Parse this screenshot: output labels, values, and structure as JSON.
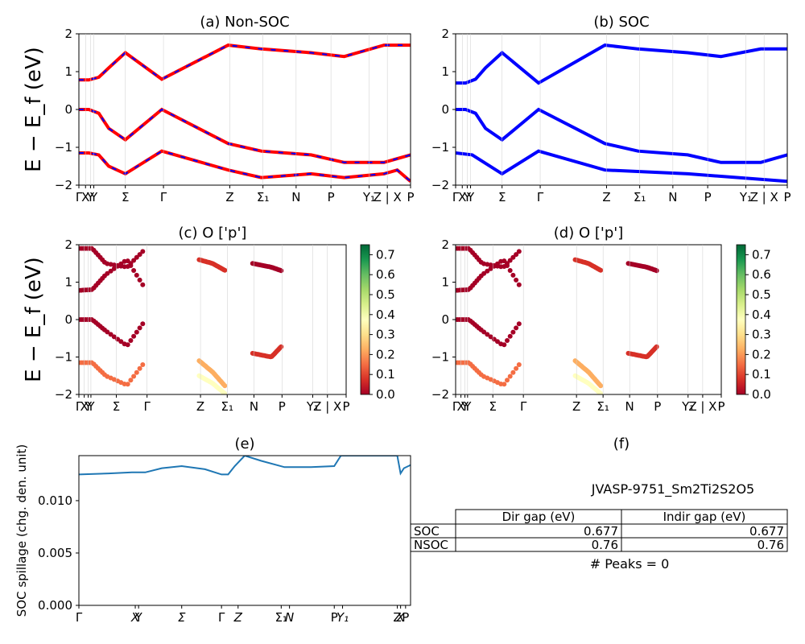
{
  "panels": {
    "a": {
      "title": "(a) Non-SOC",
      "ylabel": "E − E_f (eV)"
    },
    "b": {
      "title": "(b) SOC"
    },
    "c": {
      "title": "(c)  O ['p']",
      "ylabel": "E − E_f (eV)"
    },
    "d": {
      "title": "(d) O ['p']"
    },
    "e": {
      "title": "(e)",
      "ylabel": "SOC spillage (chg. den. unit)"
    },
    "f": {
      "title": "(f)"
    }
  },
  "band_axis": {
    "yticks": [
      "2",
      "1",
      "0",
      "−1",
      "−2"
    ],
    "ylim": [
      -2,
      2
    ]
  },
  "kpoint_labels": {
    "a": [
      "Γ",
      "X",
      "Y",
      "Y",
      "Σ",
      "Γ",
      "Z",
      "Σ₁",
      "N",
      "P",
      "Y₁",
      "Z | X",
      "P"
    ],
    "b": [
      "Γ",
      "X",
      "Y",
      "Y",
      "Σ",
      "Γ",
      "Z",
      "Σ₁",
      "N",
      "P",
      "Y₁",
      "Z | X",
      "P"
    ],
    "c": [
      "Γ",
      "X",
      "Y",
      "Y",
      "Σ",
      "Γ",
      "Z",
      "Σ₁",
      "N",
      "P",
      "Y₁",
      "Z | X",
      "P"
    ],
    "d": [
      "Γ",
      "X",
      "Y",
      "Y",
      "Σ",
      "Γ",
      "Z",
      "Σ₁",
      "N",
      "P",
      "Y₁",
      "Z | X",
      "P"
    ]
  },
  "colorbar": {
    "ticks": [
      "0.0",
      "0.1",
      "0.2",
      "0.3",
      "0.4",
      "0.5",
      "0.6",
      "0.7"
    ],
    "range": [
      0,
      0.75
    ]
  },
  "spillage_axis": {
    "yticks": [
      "0.000",
      "0.005",
      "0.010"
    ],
    "xticks": [
      "Γ",
      "X",
      "Y",
      "Σ",
      "Γ",
      "Z",
      "Σ₁",
      "N",
      "P",
      "Y₁",
      "Z",
      "X",
      "P"
    ]
  },
  "info": {
    "material": "JVASP-9751_Sm2Ti2S2O5",
    "table": {
      "headers": [
        "Dir gap (eV)",
        "Indir gap (eV)"
      ],
      "rows": [
        {
          "label": "SOC",
          "dir": "0.677",
          "indir": "0.677"
        },
        {
          "label": "NSOC",
          "dir": "0.76",
          "indir": "0.76"
        }
      ]
    },
    "peaks": "# Peaks = 0"
  },
  "colors": {
    "nonsoc_line": "#ff0000",
    "nonsoc_dash": "#0000ff",
    "soc_line": "#0000ff",
    "spillage_line": "#1f77b4",
    "colormap": "RdYlGn"
  },
  "chart_data": [
    {
      "type": "line",
      "title": "(a) Non-SOC",
      "ylabel": "E − E_f (eV)",
      "ylim": [
        -2,
        2
      ],
      "series": [
        {
          "x": [
            0,
            0.03,
            0.06,
            0.09,
            0.14,
            0.25,
            0.45,
            0.55,
            0.7,
            0.8,
            0.92,
            0.96,
            1.0
          ],
          "values": [
            0.78,
            0.78,
            0.85,
            1.1,
            1.5,
            0.8,
            1.7,
            1.6,
            1.5,
            1.4,
            1.7,
            1.7,
            1.7
          ]
        },
        {
          "x": [
            0,
            0.03,
            0.06,
            0.09,
            0.14,
            0.25,
            0.45,
            0.55,
            0.7,
            0.8,
            0.92,
            0.96,
            1.0
          ],
          "values": [
            0.0,
            0.0,
            -0.1,
            -0.5,
            -0.8,
            0.0,
            -0.9,
            -1.1,
            -1.2,
            -1.4,
            -1.4,
            -1.3,
            -1.2
          ]
        },
        {
          "x": [
            0,
            0.03,
            0.06,
            0.09,
            0.14,
            0.25,
            0.45,
            0.55,
            0.7,
            0.8,
            0.92,
            0.96,
            1.0
          ],
          "values": [
            -1.15,
            -1.15,
            -1.2,
            -1.5,
            -1.7,
            -1.1,
            -1.6,
            -1.8,
            -1.7,
            -1.8,
            -1.7,
            -1.6,
            -1.9
          ]
        }
      ]
    },
    {
      "type": "line",
      "title": "(b) SOC",
      "ylim": [
        -2,
        2
      ],
      "series": [
        {
          "x": [
            0,
            0.03,
            0.06,
            0.09,
            0.14,
            0.25,
            0.45,
            0.55,
            0.7,
            0.8,
            0.92,
            0.96,
            1.0
          ],
          "values": [
            0.7,
            0.7,
            0.8,
            1.1,
            1.5,
            0.7,
            1.7,
            1.6,
            1.5,
            1.4,
            1.6,
            1.6,
            1.6
          ]
        },
        {
          "x": [
            0,
            0.03,
            0.06,
            0.09,
            0.14,
            0.25,
            0.45,
            0.55,
            0.7,
            0.8,
            0.92,
            0.96,
            1.0
          ],
          "values": [
            0.0,
            0.0,
            -0.1,
            -0.5,
            -0.8,
            0.0,
            -0.9,
            -1.1,
            -1.2,
            -1.4,
            -1.4,
            -1.3,
            -1.2
          ]
        }
      ]
    },
    {
      "type": "scatter",
      "title": "(c)  O ['p']",
      "ylim": [
        -2,
        2
      ],
      "colorbar_range": [
        0,
        0.75
      ]
    },
    {
      "type": "scatter",
      "title": "(d) O ['p']",
      "ylim": [
        -2,
        2
      ],
      "colorbar_range": [
        0,
        0.75
      ]
    },
    {
      "type": "line",
      "title": "(e)",
      "ylabel": "SOC spillage (chg. den. unit)",
      "ylim": [
        0,
        0.0143
      ],
      "x": [
        0,
        0.09,
        0.16,
        0.2,
        0.25,
        0.31,
        0.38,
        0.43,
        0.45,
        0.47,
        0.5,
        0.55,
        0.62,
        0.7,
        0.77,
        0.79,
        0.85,
        0.9,
        0.96,
        0.97,
        0.98,
        1.0
      ],
      "values": [
        0.0125,
        0.0126,
        0.0127,
        0.0127,
        0.0131,
        0.0133,
        0.013,
        0.0125,
        0.0125,
        0.0133,
        0.0143,
        0.0138,
        0.0132,
        0.0132,
        0.0133,
        0.0143,
        0.0143,
        0.0143,
        0.0143,
        0.0126,
        0.0131,
        0.0134
      ]
    }
  ]
}
